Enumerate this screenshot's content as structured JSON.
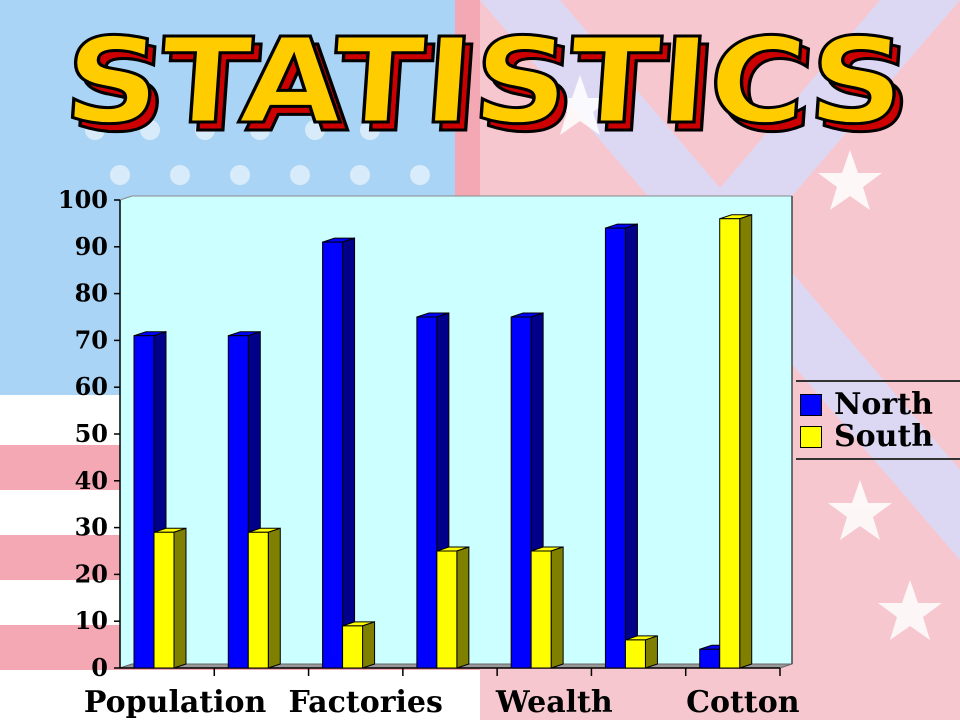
{
  "title": "STATISTICS",
  "colors": {
    "title_fill": "#ffcc00",
    "title_shadow": "#cc0000",
    "plot_background": "#ccffff",
    "north": "#0000ff",
    "south": "#ffff00"
  },
  "legend": {
    "north": "North",
    "south": "South"
  },
  "chart_data": {
    "type": "bar",
    "style": "3d-clustered",
    "categories": [
      "Population",
      "",
      "Factories",
      "",
      "Wealth",
      "",
      "Cotton"
    ],
    "series": [
      {
        "name": "North",
        "values": [
          71,
          71,
          91,
          75,
          75,
          94,
          4
        ]
      },
      {
        "name": "South",
        "values": [
          29,
          29,
          9,
          25,
          25,
          6,
          96
        ]
      }
    ],
    "yticks": [
      "0",
      "10",
      "20",
      "30",
      "40",
      "50",
      "60",
      "70",
      "80",
      "90",
      "100"
    ],
    "ylim": [
      0,
      100
    ],
    "grid": false,
    "legend_position": "right"
  }
}
